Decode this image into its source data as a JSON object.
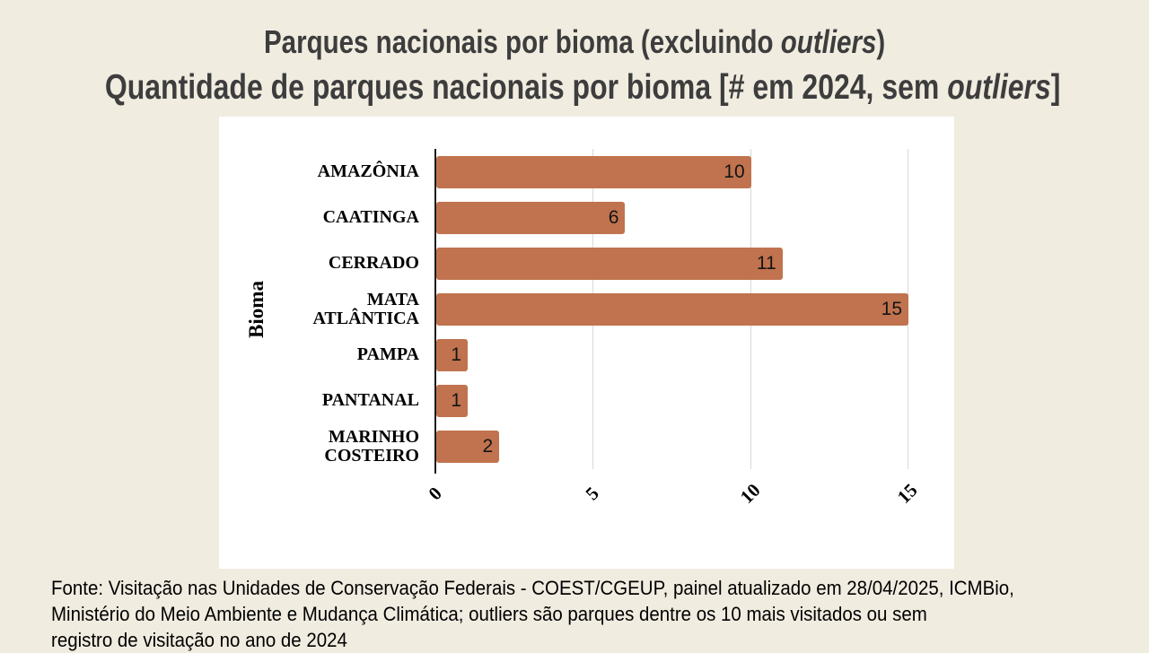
{
  "page": {
    "background": "#f1ece0",
    "title_color": "#3d3d3d",
    "title": {
      "prefix": "Parques nacionais por bioma (excluindo ",
      "italic": "outliers",
      "suffix": ")"
    },
    "subtitle": {
      "prefix": "Quantidade de parques nacionais por bioma [# em 2024, sem ",
      "italic": "outliers",
      "suffix": "]"
    }
  },
  "chart_data": {
    "type": "bar",
    "orientation": "horizontal",
    "title": "Parques nacionais por bioma (excluindo outliers)",
    "subtitle": "Quantidade de parques nacionais por bioma [# em 2024, sem outliers]",
    "categories": [
      "AMAZÔNIA",
      "CAATINGA",
      "CERRADO",
      "MATA ATLÂNTICA",
      "PAMPA",
      "PANTANAL",
      "MARINHO COSTEIRO"
    ],
    "category_labels": [
      "AMAZÔNIA",
      "CAATINGA",
      "CERRADO",
      "MATA\nATLÂNTICA",
      "PAMPA",
      "PANTANAL",
      "MARINHO\nCOSTEIRO"
    ],
    "values": [
      10,
      6,
      11,
      15,
      1,
      1,
      2
    ],
    "xlabel": "",
    "ylabel": "Bioma",
    "xlim": [
      0,
      15
    ],
    "xticks": [
      0,
      5,
      10,
      15
    ],
    "bar_color": "#c0734e",
    "grid": "vertical-only",
    "gridline_color": "#d9d9d9",
    "panel_background": "#ffffff",
    "value_labels": "inside-end"
  },
  "footer": {
    "lines": [
      "Fonte: Visitação nas Unidades de Conservação Federais - COEST/CGEUP, painel atualizado em 28/04/2025, ICMBio,",
      "Ministério do Meio Ambiente e Mudança Climática; outliers são parques dentre os 10 mais visitados ou sem",
      "registro de visitação no ano de 2024"
    ]
  }
}
